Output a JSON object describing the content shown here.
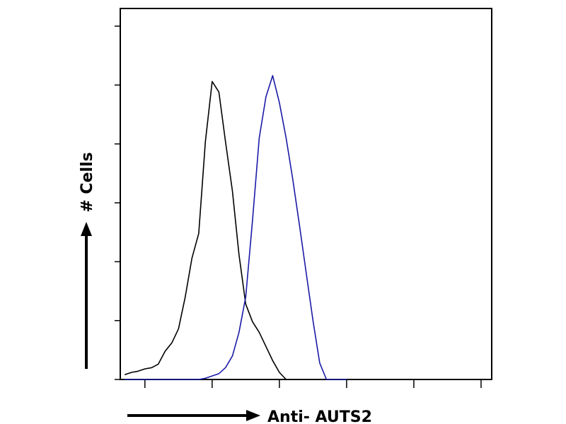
{
  "chart_data": {
    "type": "line",
    "x_label": "Anti- AUTS2",
    "y_label": "# Cells",
    "x_log": true,
    "x": [
      0.5,
      0.63,
      0.79,
      1,
      1.26,
      1.58,
      2,
      2.51,
      3.16,
      3.98,
      5.01,
      6.31,
      7.94,
      10,
      12.6,
      15.8,
      20,
      25.1,
      31.6,
      39.8,
      50.1,
      63.1,
      79.4,
      100,
      126,
      158,
      200,
      251,
      316,
      398,
      501,
      631,
      794,
      1000
    ],
    "series": [
      {
        "color": "#000000",
        "values": [
          4,
          6,
          7,
          9,
          10,
          13,
          24,
          31,
          43,
          70,
          103,
          124,
          202,
          253,
          244,
          202,
          160,
          106,
          64,
          49,
          40,
          28,
          16,
          6,
          0,
          0,
          0,
          0,
          0,
          0,
          0,
          0,
          0,
          0
        ]
      },
      {
        "color": "#1a1aa6",
        "values": [
          0,
          0,
          0,
          0,
          0,
          0,
          0,
          0,
          0,
          0,
          0,
          0,
          1,
          3,
          5,
          10,
          20,
          40,
          70,
          135,
          205,
          240,
          258,
          235,
          205,
          170,
          130,
          90,
          50,
          14,
          0,
          0,
          0,
          0
        ]
      }
    ],
    "xlim": [
      0.43,
      144000
    ],
    "xticks": [
      1,
      10,
      100,
      1000,
      10000,
      100000
    ],
    "ylim": [
      0,
      315
    ],
    "yticks": [
      0,
      50,
      100,
      150,
      200,
      250,
      300
    ]
  }
}
